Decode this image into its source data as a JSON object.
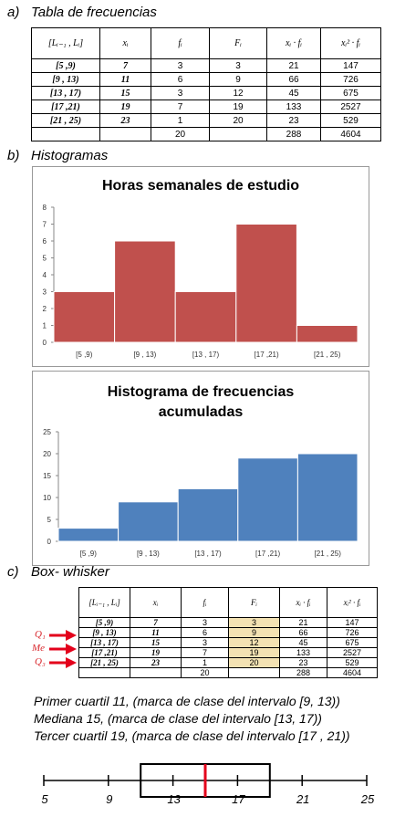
{
  "sections": {
    "a": {
      "letter": "a)",
      "title": "Tabla de frecuencias"
    },
    "b": {
      "letter": "b)",
      "title": "Histogramas"
    },
    "c": {
      "letter": "c)",
      "title": "Box- whisker"
    }
  },
  "table": {
    "headers": [
      "[Lᵢ₋₁ , Lᵢ]",
      "xᵢ",
      "fᵢ",
      "Fᵢ",
      "xᵢ · fᵢ",
      "xᵢ² · fᵢ"
    ],
    "rows": [
      [
        "[5 ,9)",
        "7",
        "3",
        "3",
        "21",
        "147"
      ],
      [
        "[9 , 13)",
        "11",
        "6",
        "9",
        "66",
        "726"
      ],
      [
        "[13 , 17)",
        "15",
        "3",
        "12",
        "45",
        "675"
      ],
      [
        "[17 ,21)",
        "19",
        "7",
        "19",
        "133",
        "2527"
      ],
      [
        "[21 , 25)",
        "23",
        "1",
        "20",
        "23",
        "529"
      ]
    ],
    "totals": [
      "",
      "",
      "20",
      "",
      "288",
      "4604"
    ]
  },
  "chart_data": [
    {
      "type": "bar",
      "title": "Horas semanales de estudio",
      "categories": [
        "[5 ,9)",
        "[9 , 13)",
        "[13 , 17)",
        "[17 ,21)",
        "[21 , 25)"
      ],
      "values": [
        3,
        6,
        3,
        7,
        1
      ],
      "ylim": [
        0,
        8
      ],
      "yticks": [
        0,
        1,
        2,
        3,
        4,
        5,
        6,
        7,
        8
      ],
      "color": "#c0504d",
      "grid": false
    },
    {
      "type": "bar",
      "title_lines": [
        "Histograma de frecuencias",
        "acumuladas"
      ],
      "categories": [
        "[5 ,9)",
        "[9 , 13)",
        "[13 , 17)",
        "[17 ,21)",
        "[21 , 25)"
      ],
      "values": [
        3,
        9,
        12,
        19,
        20
      ],
      "ylim": [
        0,
        25
      ],
      "yticks": [
        0,
        5,
        10,
        15,
        20,
        25
      ],
      "color": "#4f81bd",
      "grid": false
    },
    {
      "type": "box",
      "q1": 11,
      "median": 15,
      "q3": 19,
      "axis_ticks": [
        5,
        9,
        13,
        17,
        21,
        25
      ],
      "xlim": [
        5,
        25
      ],
      "median_color": "#e3001b"
    }
  ],
  "arrows": {
    "labels": [
      "Q₁",
      "Me",
      "Q₃"
    ],
    "color": "#e3001b"
  },
  "quartile_texts": [
    "Primer cuartil 11, (marca de clase del intervalo [9, 13))",
    "Mediana 15, (marca de clase del intervalo [13, 17))",
    "Tercer cuartil 19, (marca de clase del intervalo [17 , 21))"
  ]
}
